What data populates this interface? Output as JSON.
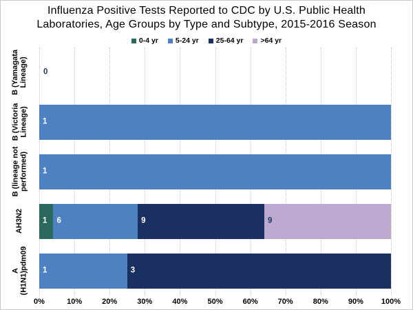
{
  "header": {
    "title_line1": "Influenza Positive Tests Reported to CDC by U.S. Public Health",
    "title_line2": "Laboratories, Age Groups by Type and Subtype, 2015-2016 Season"
  },
  "chart_data": {
    "type": "bar",
    "orientation": "horizontal",
    "stacked": true,
    "percent_scaled": true,
    "title": "Influenza Positive Tests Reported to CDC by U.S. Public Health Laboratories, Age Groups by Type and Subtype, 2015-2016 Season",
    "legend_position": "top",
    "grid": true,
    "xlim": [
      0,
      100
    ],
    "x_tick_labels": [
      "0%",
      "10%",
      "20%",
      "30%",
      "40%",
      "50%",
      "60%",
      "70%",
      "80%",
      "90%",
      "100%"
    ],
    "categories": [
      "B (Yamagata Lineage)",
      "B (Victoria Lineage)",
      "B (lineage not performed)",
      "AH3N2",
      "A (H1N1)pdm09"
    ],
    "series": [
      {
        "name": "0-4 yr",
        "color": "#2B685E",
        "values": [
          0,
          0,
          0,
          1,
          0
        ]
      },
      {
        "name": "5-24 yr",
        "color": "#4E81C2",
        "values": [
          0,
          1,
          1,
          6,
          1
        ]
      },
      {
        "name": "25-64 yr",
        "color": "#1A3060",
        "values": [
          0,
          0,
          0,
          9,
          3
        ]
      },
      {
        "name": ">64 yr",
        "color": "#BBA9CF",
        "values": [
          0,
          0,
          0,
          9,
          0
        ]
      }
    ],
    "rows": [
      {
        "category_lines": [
          "B (Yamagata",
          "Lineage)"
        ],
        "zero_label": "0",
        "segments": []
      },
      {
        "category_lines": [
          "B (Victoria",
          "Lineage)"
        ],
        "segments": [
          {
            "series": "5-24 yr",
            "label": "1",
            "pct": 100
          }
        ]
      },
      {
        "category_lines": [
          "B (lineage not",
          "performed)"
        ],
        "segments": [
          {
            "series": "5-24 yr",
            "label": "1",
            "pct": 100
          }
        ]
      },
      {
        "category_lines": [
          "AH3N2"
        ],
        "segments": [
          {
            "series": "0-4 yr",
            "label": "1",
            "pct": 4
          },
          {
            "series": "5-24 yr",
            "label": "6",
            "pct": 24
          },
          {
            "series": "25-64 yr",
            "label": "9",
            "pct": 36
          },
          {
            "series": ">64 yr",
            "label": "9",
            "pct": 36,
            "dark_label": true
          }
        ]
      },
      {
        "category_lines": [
          "A",
          "(H1N1)pdm09"
        ],
        "segments": [
          {
            "series": "5-24 yr",
            "label": "1",
            "pct": 25
          },
          {
            "series": "25-64 yr",
            "label": "3",
            "pct": 75
          }
        ]
      }
    ],
    "colors": {
      "light_label": "#FFFFFF",
      "dark_label": "#1F3864",
      "zero_label": "#1F3864",
      "gridline": "#C4C4C4"
    }
  }
}
